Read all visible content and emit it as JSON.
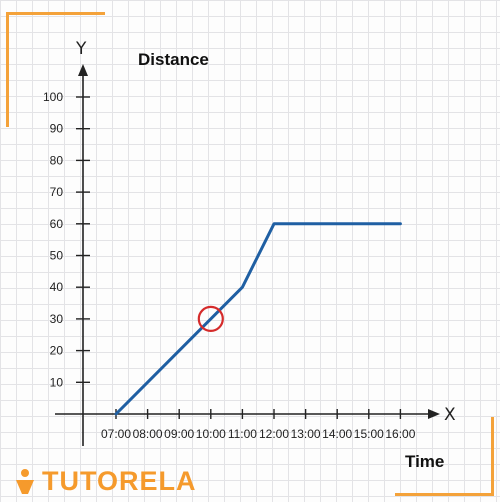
{
  "brand": {
    "logo_text": "TUTORELA",
    "accent_color": "#f59a2c"
  },
  "chart_data": {
    "type": "line",
    "title": "Distance",
    "xlabel": "Time",
    "y_axis_letter": "Y",
    "x_axis_letter": "X",
    "x_categories": [
      "07:00",
      "08:00",
      "09:00",
      "10:00",
      "11:00",
      "12:00",
      "13:00",
      "14:00",
      "15:00",
      "16:00"
    ],
    "y_ticks": [
      10,
      20,
      30,
      40,
      50,
      60,
      70,
      80,
      90,
      100
    ],
    "ylim": [
      0,
      100
    ],
    "series": [
      {
        "color": "#1f5fa3",
        "points": [
          {
            "x": "07:00",
            "y": 0
          },
          {
            "x": "11:00",
            "y": 40
          },
          {
            "x": "12:00",
            "y": 60
          },
          {
            "x": "16:00",
            "y": 60
          }
        ]
      }
    ],
    "highlight": {
      "x": "10:00",
      "y": 30,
      "color": "#d52b2b"
    }
  }
}
